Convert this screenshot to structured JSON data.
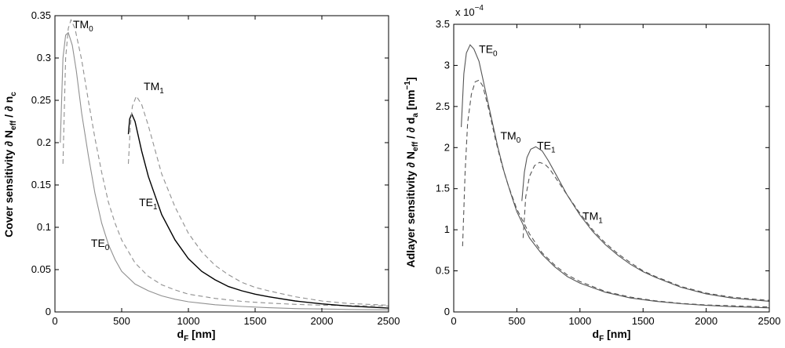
{
  "chart_data": [
    {
      "type": "line",
      "ylabel": {
        "base": "Cover sensitivity ∂ N",
        "sub1": "eff",
        "mid": " / ∂ n",
        "sub2": "c"
      },
      "xlabel": {
        "base": "d",
        "sub": "F",
        "rest": " [nm]"
      },
      "xlim": [
        0,
        2500
      ],
      "ylim": [
        0,
        0.35
      ],
      "xticks": [
        0,
        500,
        1000,
        1500,
        2000,
        2500
      ],
      "xtick_labels": [
        "0",
        "500",
        "1000",
        "1500",
        "2000",
        "2500"
      ],
      "yticks": [
        0,
        0.05,
        0.1,
        0.15,
        0.2,
        0.25,
        0.3,
        0.35
      ],
      "ytick_labels": [
        "0",
        "0.05",
        "0.1",
        "0.15",
        "0.2",
        "0.25",
        "0.3",
        "0.35"
      ],
      "series": [
        {
          "name": "TE0",
          "style": "solid",
          "color": "#909090",
          "x": [
            40,
            60,
            80,
            100,
            130,
            160,
            200,
            250,
            300,
            350,
            400,
            450,
            500,
            600,
            700,
            800,
            900,
            1000,
            1200,
            1400,
            1600,
            1800,
            2000,
            2200,
            2500
          ],
          "y": [
            0.2,
            0.3,
            0.327,
            0.33,
            0.315,
            0.285,
            0.235,
            0.185,
            0.14,
            0.105,
            0.08,
            0.062,
            0.048,
            0.033,
            0.025,
            0.019,
            0.015,
            0.012,
            0.0085,
            0.0065,
            0.005,
            0.004,
            0.0035,
            0.003,
            0.0025
          ]
        },
        {
          "name": "TM0",
          "style": "dashed",
          "color": "#909090",
          "x": [
            60,
            80,
            100,
            120,
            150,
            200,
            250,
            300,
            350,
            400,
            450,
            500,
            600,
            700,
            800,
            900,
            1000,
            1200,
            1400,
            1600,
            1800,
            2000,
            2200,
            2500
          ],
          "y": [
            0.175,
            0.3,
            0.335,
            0.345,
            0.335,
            0.298,
            0.25,
            0.205,
            0.165,
            0.13,
            0.105,
            0.085,
            0.058,
            0.042,
            0.032,
            0.026,
            0.021,
            0.016,
            0.0125,
            0.0105,
            0.009,
            0.008,
            0.0075,
            0.007
          ]
        },
        {
          "name": "TE1",
          "style": "solid",
          "color": "#000000",
          "x": [
            550,
            560,
            575,
            600,
            650,
            700,
            800,
            900,
            1000,
            1100,
            1200,
            1300,
            1400,
            1500,
            1600,
            1800,
            2000,
            2200,
            2500
          ],
          "y": [
            0.21,
            0.228,
            0.234,
            0.225,
            0.19,
            0.16,
            0.115,
            0.085,
            0.063,
            0.048,
            0.038,
            0.03,
            0.025,
            0.021,
            0.018,
            0.013,
            0.0095,
            0.007,
            0.0045
          ]
        },
        {
          "name": "TM1",
          "style": "dashed",
          "color": "#909090",
          "x": [
            550,
            565,
            580,
            610,
            650,
            700,
            800,
            900,
            1000,
            1100,
            1200,
            1300,
            1400,
            1500,
            1600,
            1800,
            2000,
            2200,
            2500
          ],
          "y": [
            0.175,
            0.22,
            0.243,
            0.255,
            0.245,
            0.22,
            0.163,
            0.124,
            0.093,
            0.071,
            0.055,
            0.044,
            0.035,
            0.029,
            0.025,
            0.018,
            0.013,
            0.01,
            0.008
          ]
        }
      ],
      "annotations": [
        {
          "base": "TM",
          "sub": "0",
          "x": 135,
          "y": 0.335
        },
        {
          "base": "TM",
          "sub": "1",
          "x": 665,
          "y": 0.262
        },
        {
          "base": "TE",
          "sub": "1",
          "x": 630,
          "y": 0.125
        },
        {
          "base": "TE",
          "sub": "0",
          "x": 270,
          "y": 0.077
        }
      ]
    },
    {
      "type": "line",
      "ylabel": {
        "base": "Adlayer sensitivity ∂ N",
        "sub1": "eff",
        "mid": " / ∂ d",
        "sub2": "a",
        "rest": " [nm",
        "sup": "−1",
        "end": "]"
      },
      "xlabel": {
        "base": "d",
        "sub": "F",
        "rest": " [nm]"
      },
      "scale_label": {
        "base": "x 10",
        "sup": "−4"
      },
      "xlim": [
        0,
        2500
      ],
      "ylim": [
        0,
        3.5
      ],
      "xticks": [
        0,
        500,
        1000,
        1500,
        2000,
        2500
      ],
      "xtick_labels": [
        "0",
        "500",
        "1000",
        "1500",
        "2000",
        "2500"
      ],
      "yticks": [
        0,
        0.5,
        1,
        1.5,
        2,
        2.5,
        3,
        3.5
      ],
      "ytick_labels": [
        "0",
        "0.5",
        "1",
        "1.5",
        "2",
        "2.5",
        "3",
        "3.5"
      ],
      "series": [
        {
          "name": "TE0",
          "style": "solid",
          "color": "#555555",
          "x": [
            60,
            80,
            100,
            130,
            160,
            200,
            250,
            300,
            350,
            400,
            450,
            500,
            600,
            700,
            800,
            900,
            1000,
            1200,
            1400,
            1600,
            1800,
            2000,
            2200,
            2500
          ],
          "y": [
            2.25,
            2.9,
            3.15,
            3.25,
            3.2,
            3.05,
            2.7,
            2.35,
            2.0,
            1.7,
            1.45,
            1.22,
            0.9,
            0.7,
            0.55,
            0.43,
            0.35,
            0.24,
            0.17,
            0.13,
            0.1,
            0.08,
            0.065,
            0.05
          ]
        },
        {
          "name": "TM0",
          "style": "dashed",
          "color": "#555555",
          "x": [
            70,
            90,
            110,
            140,
            170,
            200,
            230,
            280,
            330,
            380,
            430,
            500,
            600,
            700,
            800,
            900,
            1000,
            1200,
            1400,
            1600,
            1800,
            2000,
            2200,
            2500
          ],
          "y": [
            0.8,
            1.7,
            2.3,
            2.65,
            2.8,
            2.82,
            2.75,
            2.45,
            2.1,
            1.8,
            1.55,
            1.25,
            0.95,
            0.72,
            0.57,
            0.45,
            0.37,
            0.25,
            0.18,
            0.135,
            0.105,
            0.085,
            0.075,
            0.06
          ]
        },
        {
          "name": "TE1",
          "style": "solid",
          "color": "#555555",
          "x": [
            540,
            560,
            580,
            610,
            650,
            700,
            750,
            800,
            900,
            1000,
            1100,
            1200,
            1300,
            1400,
            1500,
            1600,
            1800,
            2000,
            2200,
            2500
          ],
          "y": [
            1.35,
            1.7,
            1.88,
            1.98,
            2.01,
            1.96,
            1.84,
            1.7,
            1.42,
            1.18,
            0.98,
            0.82,
            0.69,
            0.58,
            0.49,
            0.42,
            0.3,
            0.22,
            0.17,
            0.13
          ]
        },
        {
          "name": "TM1",
          "style": "dashed",
          "color": "#555555",
          "x": [
            550,
            570,
            600,
            640,
            680,
            720,
            760,
            800,
            900,
            1000,
            1100,
            1200,
            1300,
            1400,
            1500,
            1600,
            1800,
            2000,
            2200,
            2500
          ],
          "y": [
            0.9,
            1.4,
            1.65,
            1.78,
            1.82,
            1.8,
            1.74,
            1.65,
            1.42,
            1.2,
            1.0,
            0.84,
            0.71,
            0.6,
            0.5,
            0.43,
            0.31,
            0.23,
            0.18,
            0.14
          ]
        }
      ],
      "annotations": [
        {
          "base": "TE",
          "sub": "0",
          "x": 200,
          "y": 3.15
        },
        {
          "base": "TM",
          "sub": "0",
          "x": 370,
          "y": 2.1
        },
        {
          "base": "TE",
          "sub": "1",
          "x": 660,
          "y": 1.98
        },
        {
          "base": "TM",
          "sub": "1",
          "x": 1020,
          "y": 1.12
        }
      ]
    }
  ]
}
